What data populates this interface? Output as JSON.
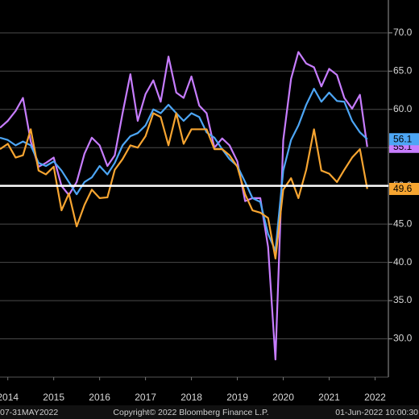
{
  "chart_data": {
    "type": "line",
    "x": [
      2014.33,
      2014.5,
      2014.67,
      2014.83,
      2015,
      2015.17,
      2015.33,
      2015.5,
      2015.67,
      2015.83,
      2016,
      2016.17,
      2016.33,
      2016.5,
      2016.67,
      2016.83,
      2017,
      2017.17,
      2017.33,
      2017.5,
      2017.67,
      2017.83,
      2018,
      2018.17,
      2018.33,
      2018.5,
      2018.67,
      2018.83,
      2019,
      2019.17,
      2019.33,
      2019.5,
      2019.67,
      2019.83,
      2020,
      2020.17,
      2020.33,
      2020.5,
      2020.67,
      2020.83,
      2021,
      2021.17,
      2021.33,
      2021.5,
      2021.67,
      2021.83,
      2022,
      2022.17,
      2022.33
    ],
    "series": [
      {
        "color": "#c77dff",
        "values": [
          57.6,
          58.5,
          59.8,
          61.5,
          55.8,
          52.5,
          53,
          53.7,
          50,
          48.8,
          50.5,
          54.2,
          56.3,
          55.3,
          52.6,
          54,
          59.5,
          64.6,
          58.5,
          62,
          63.8,
          61,
          66.9,
          62.2,
          61.5,
          64.3,
          60.5,
          59.5,
          55,
          56.2,
          55.3,
          53.2,
          48,
          48.4,
          48.4,
          42,
          27.3,
          56,
          64,
          67.5,
          66,
          65.5,
          63,
          65.3,
          64.5,
          61.5,
          60.1,
          61.9,
          55.1
        ]
      },
      {
        "color": "#4da6f5",
        "values": [
          56.3,
          56,
          55.3,
          55.8,
          55.3,
          53,
          52.6,
          53.2,
          52,
          50.5,
          48.9,
          50.5,
          51.1,
          52.6,
          51.5,
          53,
          55.3,
          56.5,
          56.9,
          57.9,
          60,
          59.5,
          60.6,
          59.5,
          58.5,
          59.5,
          59,
          57,
          56.3,
          54.8,
          53.5,
          52.6,
          50.5,
          48.4,
          47.9,
          43.7,
          41.5,
          52,
          56,
          57.9,
          60.6,
          62.7,
          61,
          62.2,
          61.1,
          61,
          58.5,
          57,
          56.1
        ]
      },
      {
        "color": "#f7a531",
        "values": [
          54.8,
          55.5,
          53.7,
          54,
          57.4,
          52,
          51.5,
          52.5,
          46.8,
          49,
          44.7,
          47.5,
          49.5,
          48.4,
          48.5,
          52.1,
          53.5,
          55.3,
          55,
          56.5,
          59.5,
          59,
          55.3,
          59.5,
          55.5,
          57.4,
          57.4,
          57.4,
          54.8,
          54.8,
          54,
          52.5,
          48.9,
          46.8,
          46.5,
          45.8,
          40.5,
          49.5,
          51,
          48.4,
          52.1,
          57.4,
          52,
          51.6,
          50.5,
          52.1,
          53.7,
          54.8,
          49.6
        ]
      }
    ],
    "xlim": [
      2014.33,
      2022.79
    ],
    "xticks": [
      {
        "value": 2014.5,
        "label": "2014"
      },
      {
        "value": 2015.5,
        "label": "2015"
      },
      {
        "value": 2016.5,
        "label": "2016"
      },
      {
        "value": 2017.5,
        "label": "2017"
      },
      {
        "value": 2018.5,
        "label": "2018"
      },
      {
        "value": 2019.5,
        "label": "2019"
      },
      {
        "value": 2020.5,
        "label": "2020"
      },
      {
        "value": 2021.5,
        "label": "2021"
      },
      {
        "value": 2022.5,
        "label": "2022"
      }
    ],
    "ylim": [
      25.0,
      74.3
    ],
    "yticks": [
      {
        "value": 30,
        "label": "30.0"
      },
      {
        "value": 35,
        "label": "35.0"
      },
      {
        "value": 40,
        "label": "40.0"
      },
      {
        "value": 45,
        "label": "45.0"
      },
      {
        "value": 50,
        "label": "50.0"
      },
      {
        "value": 55,
        "label": "55.0"
      },
      {
        "value": 60,
        "label": "60.0"
      },
      {
        "value": 65,
        "label": "65.0"
      },
      {
        "value": 70,
        "label": "70.0"
      }
    ],
    "reference_line": 50,
    "grid": true,
    "footer": [
      "07-31MAY2022",
      "Copyright© 2022 Bloomberg Finance L.P.",
      "01-Jun-2022 10:00:30"
    ]
  }
}
